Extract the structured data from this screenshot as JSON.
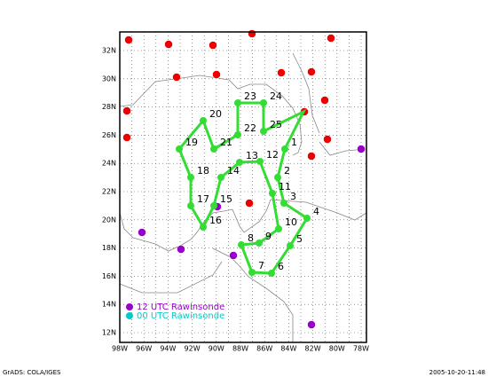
{
  "map": {
    "lat_labels": [
      "32N",
      "30N",
      "28N",
      "26N",
      "24N",
      "22N",
      "20N",
      "18N",
      "16N",
      "14N",
      "12N"
    ],
    "lon_labels": [
      "98W",
      "96W",
      "94W",
      "92W",
      "90W",
      "88W",
      "86W",
      "84W",
      "82W",
      "80W",
      "78W"
    ],
    "waypoints": [
      "1",
      "2",
      "3",
      "4",
      "5",
      "6",
      "7",
      "8",
      "9",
      "10",
      "11",
      "12",
      "13",
      "14",
      "15",
      "16",
      "17",
      "18",
      "19",
      "20",
      "21",
      "22",
      "23",
      "24",
      "25"
    ],
    "legend": [
      "12 UTC Rawinsonde",
      "00 UTC Rawinsonde"
    ],
    "footer": {
      "left": "GrADS: COLA/IGES",
      "right": "2005-10-20-11:48"
    }
  }
}
